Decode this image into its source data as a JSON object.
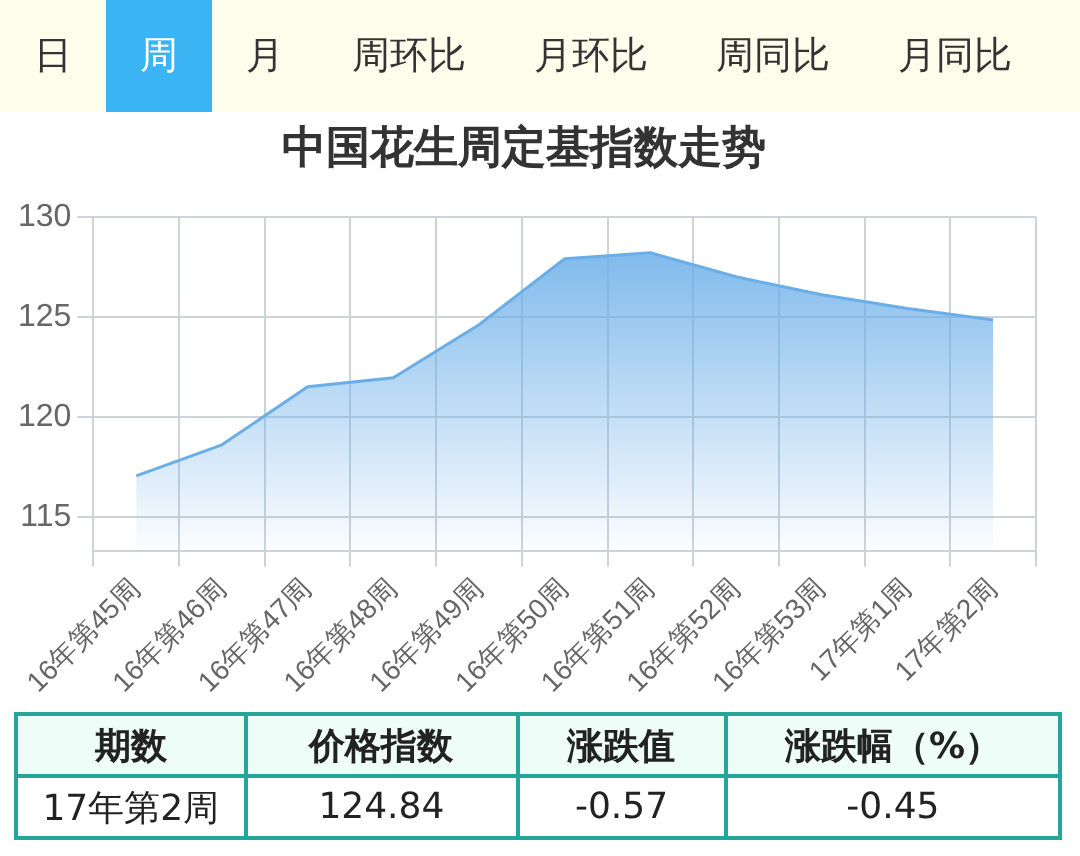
{
  "chart_data": {
    "type": "area",
    "title": "中国花生周定基指数走势",
    "categories": [
      "16年第45周",
      "16年第46周",
      "16年第47周",
      "16年第48周",
      "16年第49周",
      "16年第50周",
      "16年第51周",
      "16年第52周",
      "16年第53周",
      "17年第1周",
      "17年第2周"
    ],
    "series": [
      {
        "color": "#6aaee8",
        "values": [
          117.05,
          118.6,
          121.5,
          121.95,
          124.6,
          127.9,
          128.2,
          127.0,
          126.1,
          125.41,
          124.84
        ]
      }
    ],
    "ylim": [
      113.3,
      130
    ],
    "yticks": [
      115,
      120,
      125,
      130
    ],
    "grid": true,
    "legend": false,
    "marker": "none",
    "annotations": [
      "日",
      "周",
      "月",
      "周环比",
      "月环比",
      "周同比",
      "月同比",
      "期数",
      "价格指数",
      "涨跌值",
      "涨跌幅（%）",
      "17年第2周",
      "124.84",
      "-0.57",
      "-0.45"
    ]
  }
}
